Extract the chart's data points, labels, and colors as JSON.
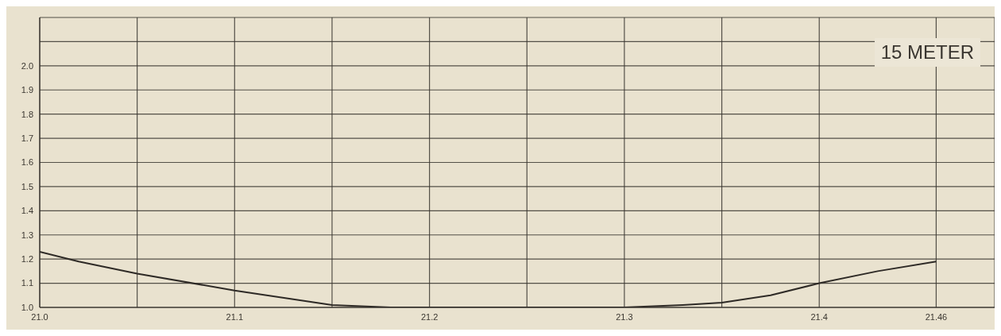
{
  "chart_data": {
    "type": "line",
    "x": [
      21.0,
      21.02,
      21.05,
      21.1,
      21.15,
      21.18,
      21.2,
      21.25,
      21.3,
      21.33,
      21.35,
      21.375,
      21.4,
      21.43,
      21.46
    ],
    "series": [
      {
        "color": "#2e2a26",
        "values": [
          1.23,
          1.19,
          1.14,
          1.07,
          1.01,
          1.0,
          1.0,
          1.0,
          1.0,
          1.01,
          1.02,
          1.05,
          1.1,
          1.15,
          1.19
        ]
      }
    ],
    "xlim": [
      21.0,
      21.49
    ],
    "xticks": [
      {
        "value": 21.0,
        "label": "21.0"
      },
      {
        "value": 21.05,
        "label": null
      },
      21.1,
      {
        "value": 21.15,
        "label": null
      },
      21.2,
      {
        "value": 21.25,
        "label": null
      },
      21.3,
      {
        "value": 21.35,
        "label": null
      },
      21.4,
      21.46
    ],
    "ylim": [
      1.0,
      2.2
    ],
    "yticks": [
      {
        "value": 1.0,
        "label": "1.0"
      },
      1.1,
      1.2,
      1.3,
      1.4,
      1.5,
      1.6,
      1.7,
      1.8,
      1.9,
      {
        "value": 2.0,
        "label": "2.0"
      },
      {
        "value": 2.1,
        "label": null
      },
      {
        "value": 2.2,
        "label": null
      }
    ],
    "grid": true,
    "marker": "none",
    "line_style": "solid",
    "annotations": [
      "15 METER"
    ]
  }
}
